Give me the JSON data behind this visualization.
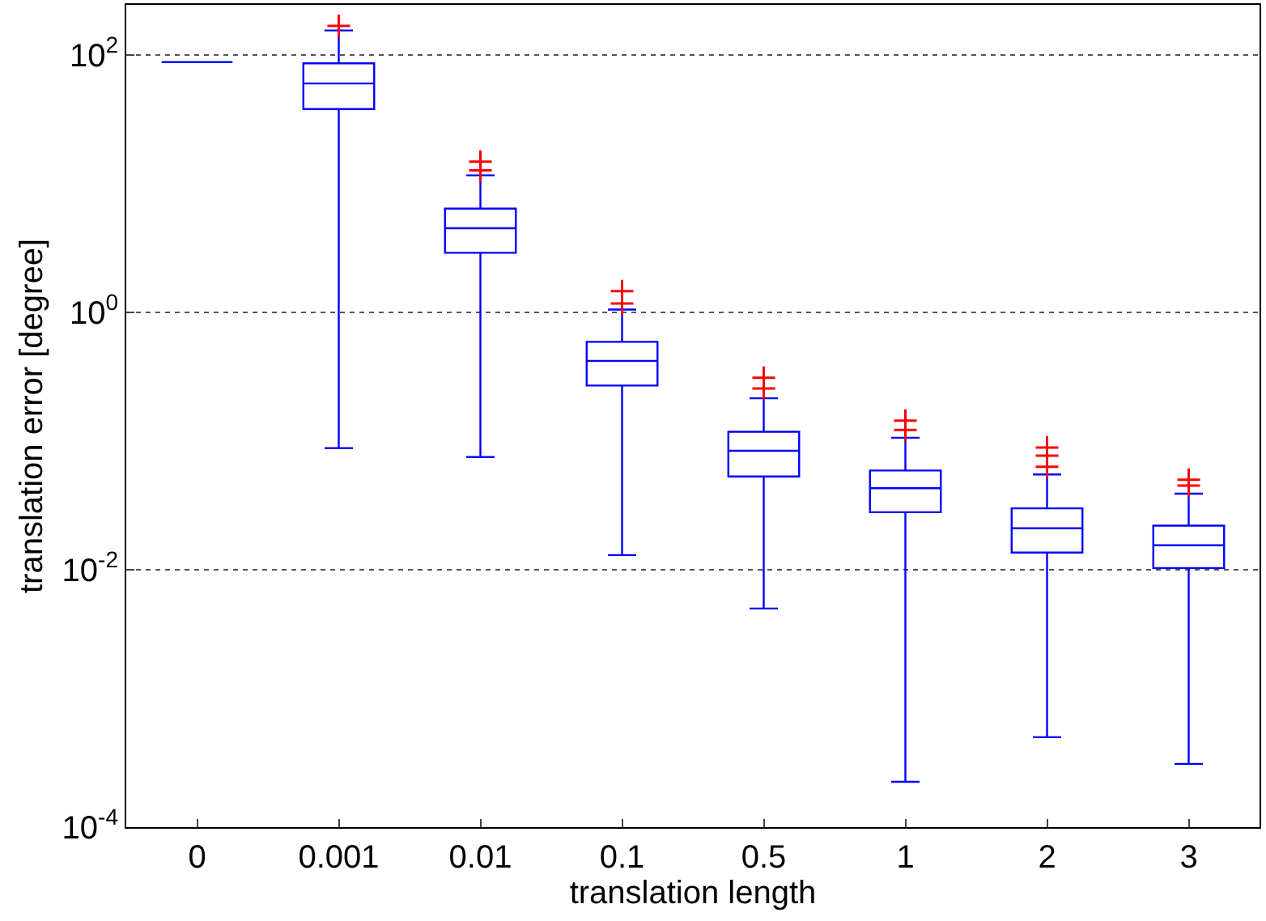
{
  "chart_data": {
    "type": "box",
    "xlabel": "translation length",
    "ylabel": "translation error [degree]",
    "categories": [
      "0",
      "0.001",
      "0.01",
      "0.1",
      "0.5",
      "1",
      "2",
      "3"
    ],
    "series": [
      {
        "color": "#0000ff",
        "boxes": [
          {
            "low": 88,
            "q1": 88,
            "median": 88,
            "q3": 88,
            "high": 88
          },
          {
            "low": 0.088,
            "q1": 38,
            "median": 60,
            "q3": 86,
            "high": 155
          },
          {
            "low": 0.075,
            "q1": 2.9,
            "median": 4.5,
            "q3": 6.4,
            "high": 11.6
          },
          {
            "low": 0.013,
            "q1": 0.27,
            "median": 0.42,
            "q3": 0.59,
            "high": 1.05
          },
          {
            "low": 0.005,
            "q1": 0.053,
            "median": 0.084,
            "q3": 0.118,
            "high": 0.215
          },
          {
            "low": 0.000225,
            "q1": 0.028,
            "median": 0.043,
            "q3": 0.059,
            "high": 0.106
          },
          {
            "low": 0.0005,
            "q1": 0.0136,
            "median": 0.021,
            "q3": 0.03,
            "high": 0.055
          },
          {
            "low": 0.00031,
            "q1": 0.0103,
            "median": 0.0155,
            "q3": 0.022,
            "high": 0.039
          }
        ]
      },
      {
        "type": "scatter",
        "color": "#ff0000",
        "marker": "cross",
        "x": [
          "0.001",
          "0.01",
          "0.01",
          "0.1",
          "0.1",
          "0.5",
          "0.5",
          "1",
          "1",
          "2",
          "2",
          "2",
          "3",
          "3"
        ],
        "values": [
          168,
          12.7,
          14.8,
          1.17,
          1.46,
          0.256,
          0.31,
          0.122,
          0.144,
          0.063,
          0.077,
          0.089,
          0.045,
          0.05
        ]
      }
    ],
    "log": "y",
    "ylim": [
      0.0001,
      245
    ],
    "yticks": [
      {
        "value": 0.0001,
        "label": "10$^{-4}$"
      },
      {
        "value": 0.01,
        "label": "10$^{-2}$"
      },
      {
        "value": 1,
        "label": "10$^{0}$"
      },
      {
        "value": 100,
        "label": "10$^{2}$"
      }
    ],
    "grid": "y"
  }
}
